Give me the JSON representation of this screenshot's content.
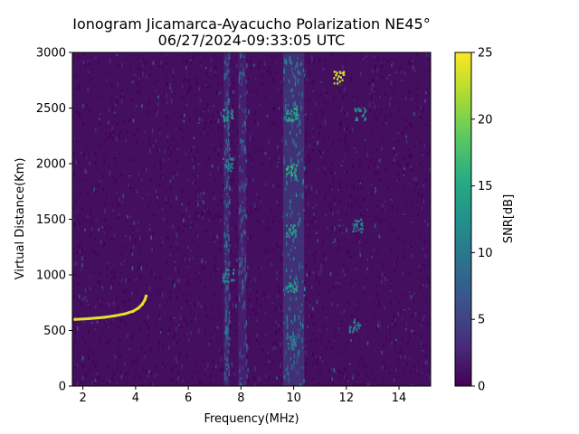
{
  "chart_data": {
    "type": "heatmap",
    "title": "Ionogram Jicamarca-Ayacucho Polarization NE45°",
    "subtitle": "06/27/2024-09:33:05 UTC",
    "xlabel": "Frequency(MHz)",
    "ylabel": "Virtual Distance(Km)",
    "xlim": [
      1.6,
      15.2
    ],
    "ylim": [
      0,
      3000
    ],
    "xticks": [
      2,
      4,
      6,
      8,
      10,
      12,
      14
    ],
    "yticks": [
      0,
      500,
      1000,
      1500,
      2000,
      2500,
      3000
    ],
    "colorbar": {
      "label": "SNR[dB]",
      "range": [
        0,
        25
      ],
      "ticks": [
        0,
        5,
        10,
        15,
        20,
        25
      ],
      "colormap": "viridis"
    },
    "background_snr": 1,
    "features": [
      {
        "type": "echo-trace",
        "snr": 24,
        "points": [
          [
            1.7,
            600
          ],
          [
            2.2,
            606
          ],
          [
            2.8,
            618
          ],
          [
            3.2,
            632
          ],
          [
            3.6,
            650
          ],
          [
            3.9,
            672
          ],
          [
            4.1,
            700
          ],
          [
            4.25,
            735
          ],
          [
            4.35,
            775
          ],
          [
            4.4,
            810
          ]
        ]
      },
      {
        "type": "vertical-band",
        "x_range": [
          7.35,
          7.55
        ],
        "y_range": [
          0,
          3000
        ],
        "snr": 4
      },
      {
        "type": "vertical-band",
        "x_range": [
          9.6,
          10.4
        ],
        "y_range": [
          0,
          3000
        ],
        "snr": 6
      },
      {
        "type": "vertical-band",
        "x_range": [
          7.9,
          8.2
        ],
        "y_range": [
          0,
          3000
        ],
        "snr": 3
      },
      {
        "type": "patch",
        "x": 9.9,
        "y": 2450,
        "snr": 17
      },
      {
        "type": "patch",
        "x": 9.9,
        "y": 1950,
        "snr": 17
      },
      {
        "type": "patch",
        "x": 9.9,
        "y": 1400,
        "snr": 15
      },
      {
        "type": "patch",
        "x": 9.9,
        "y": 900,
        "snr": 15
      },
      {
        "type": "patch",
        "x": 9.9,
        "y": 400,
        "snr": 12
      },
      {
        "type": "patch",
        "x": 7.5,
        "y": 2450,
        "snr": 14
      },
      {
        "type": "patch",
        "x": 7.5,
        "y": 2000,
        "snr": 12
      },
      {
        "type": "patch",
        "x": 7.5,
        "y": 1000,
        "snr": 13
      },
      {
        "type": "patch",
        "x": 12.5,
        "y": 2450,
        "snr": 14
      },
      {
        "type": "patch",
        "x": 12.4,
        "y": 1450,
        "snr": 13
      },
      {
        "type": "patch",
        "x": 12.3,
        "y": 550,
        "snr": 12
      },
      {
        "type": "patch",
        "x": 11.7,
        "y": 2780,
        "snr": 25
      }
    ]
  }
}
